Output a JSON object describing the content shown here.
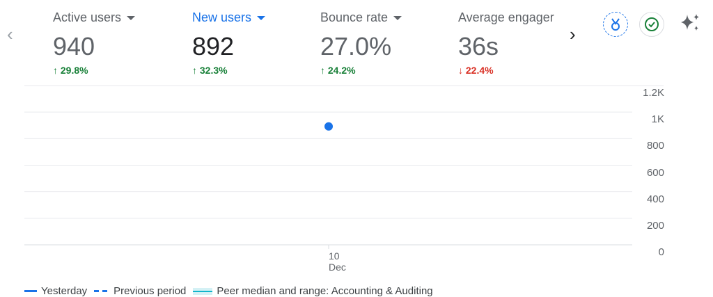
{
  "metrics": [
    {
      "label": "Active users",
      "value": "940",
      "delta": "29.8%",
      "direction": "up",
      "selected": false
    },
    {
      "label": "New users",
      "value": "892",
      "delta": "32.3%",
      "direction": "up",
      "selected": true
    },
    {
      "label": "Bounce rate",
      "value": "27.0%",
      "delta": "24.2%",
      "direction": "up",
      "selected": false
    },
    {
      "label": "Average engager",
      "value": "36s",
      "delta": "22.4%",
      "direction": "down",
      "selected": false
    }
  ],
  "icons": {
    "prev": "chevron-left-icon",
    "next": "chevron-right-icon",
    "medal": "medal-icon",
    "check": "check-circle-icon",
    "sparkle": "sparkle-icon"
  },
  "colors": {
    "accent": "#1a73e8",
    "up": "#188038",
    "down": "#d93025",
    "peer": "#12b5cb"
  },
  "chart_data": {
    "type": "scatter",
    "x_tick_labels": [
      {
        "day": "10",
        "month": "Dec"
      }
    ],
    "yticks": [
      "0",
      "200",
      "400",
      "600",
      "800",
      "1K",
      "1.2K"
    ],
    "ylim": [
      0,
      1200
    ],
    "grid": true,
    "series": [
      {
        "name": "Yesterday",
        "points": [
          {
            "x": "10 Dec",
            "y": 892
          }
        ]
      }
    ],
    "legend": [
      "Yesterday",
      "Previous period",
      "Peer median and range: Accounting & Auditing"
    ],
    "legend_placement": "bottom-left"
  }
}
